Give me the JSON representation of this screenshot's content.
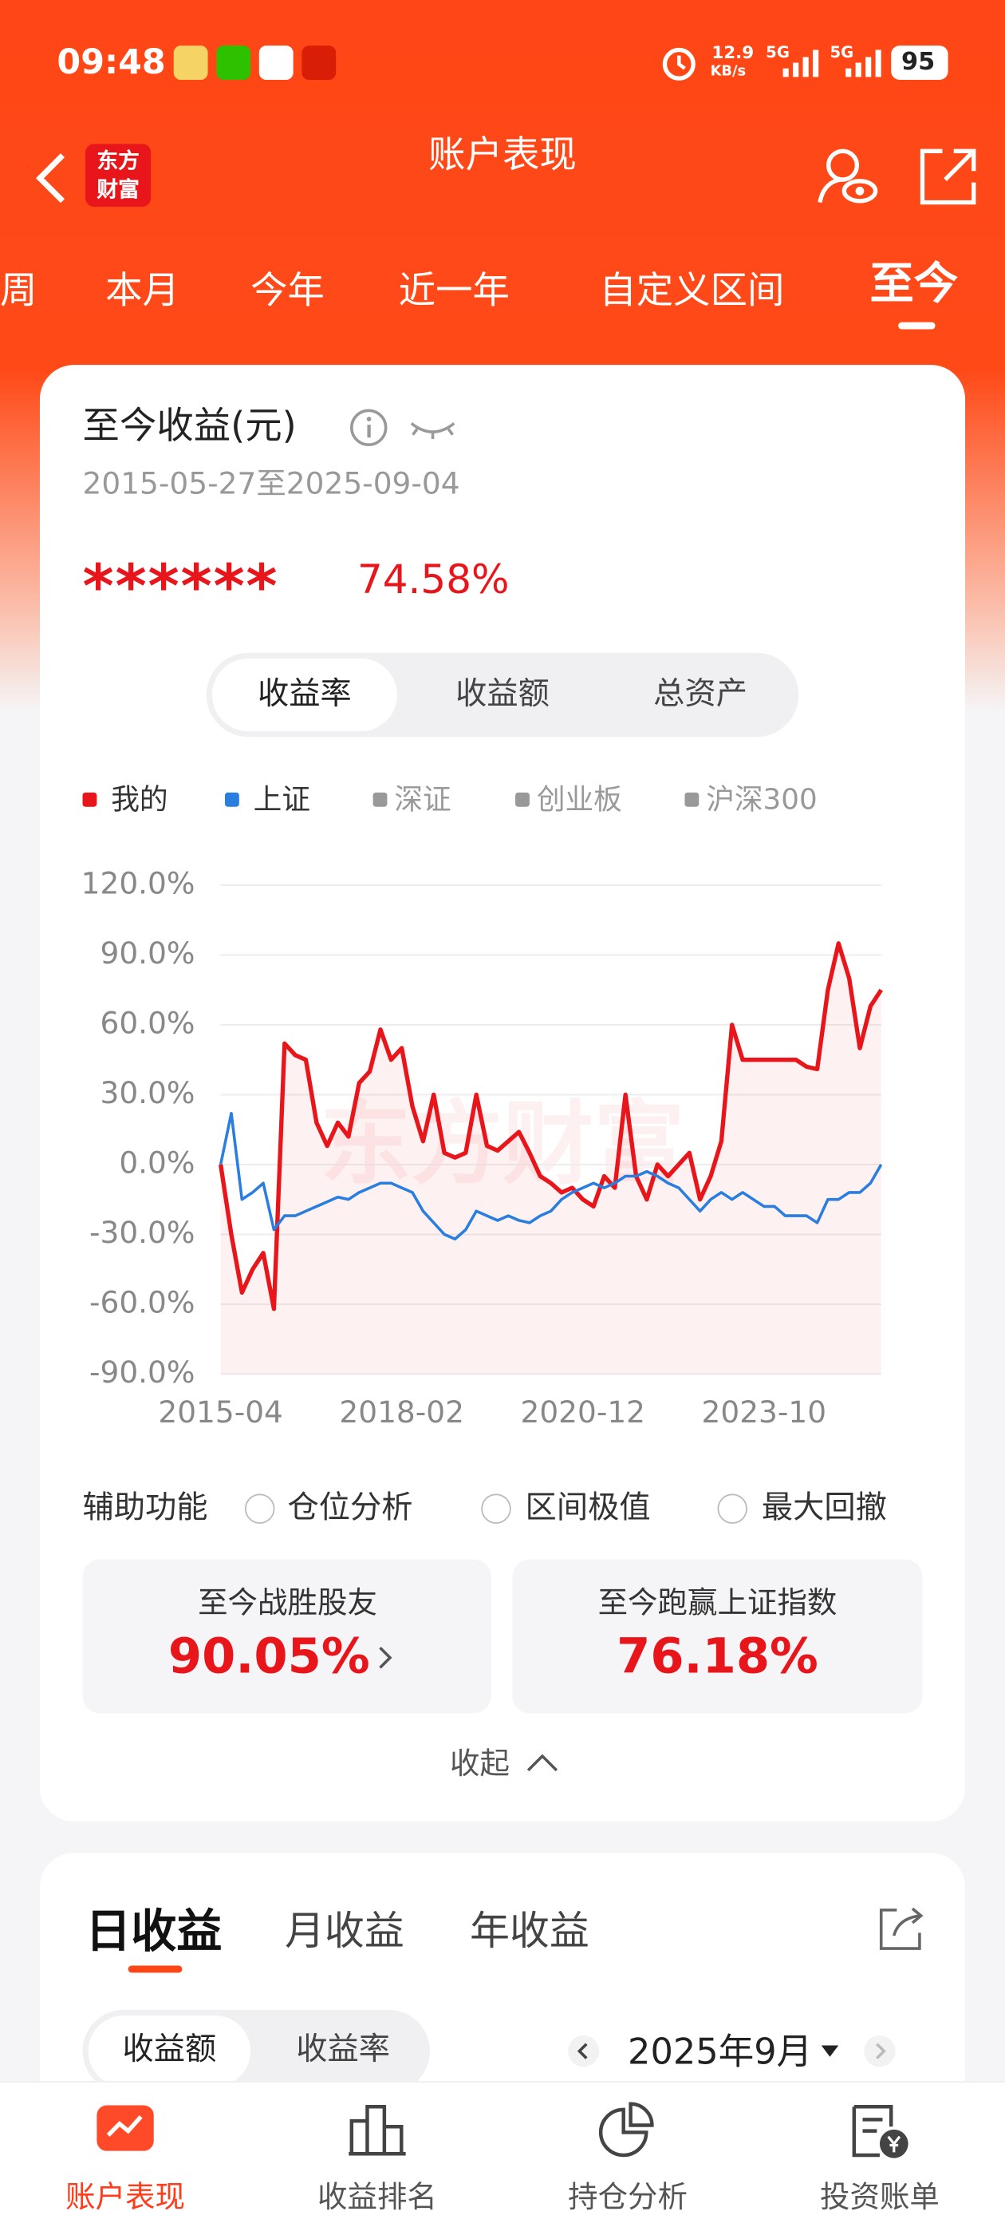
{
  "status_bar": {
    "time": "09:48",
    "speed": "12.9",
    "speed_unit": "KB/s",
    "net1": "5G",
    "net2": "5G",
    "battery": "95"
  },
  "header": {
    "title": "账户表现",
    "logo": [
      "东方",
      "财富"
    ]
  },
  "period_tabs": [
    "周",
    "本月",
    "今年",
    "近一年",
    "自定义区间",
    "至今"
  ],
  "summary": {
    "title": "至今收益(元)",
    "date_range": "2015-05-27至2025-09-04",
    "amount": "******",
    "rate": "74.58%"
  },
  "segments": [
    "收益率",
    "收益额",
    "总资产"
  ],
  "chart_data": {
    "type": "line",
    "watermark": "东方财富",
    "inactive_legend": [
      "深证",
      "创业板",
      "沪深300"
    ],
    "categories": [
      "2015-04",
      null,
      null,
      null,
      null,
      null,
      null,
      null,
      null,
      null,
      null,
      null,
      null,
      null,
      null,
      null,
      null,
      "2018-02",
      null,
      null,
      null,
      null,
      null,
      null,
      null,
      null,
      null,
      null,
      null,
      null,
      null,
      null,
      null,
      null,
      "2020-12",
      null,
      null,
      null,
      null,
      null,
      null,
      null,
      null,
      null,
      null,
      null,
      null,
      null,
      null,
      null,
      null,
      "2023-10",
      null,
      null,
      null,
      null,
      null,
      null,
      null,
      null,
      null,
      null,
      null
    ],
    "series": [
      {
        "name": "我的",
        "color": "#e8151b",
        "area": true,
        "values": [
          0,
          -30,
          -55,
          -45,
          -38,
          -62,
          52,
          47,
          45,
          18,
          8,
          18,
          12,
          35,
          40,
          58,
          45,
          50,
          25,
          10,
          30,
          5,
          3,
          5,
          30,
          8,
          6,
          10,
          14,
          5,
          -5,
          -8,
          -12,
          -10,
          -15,
          -18,
          -5,
          -10,
          30,
          -5,
          -15,
          0,
          -5,
          0,
          5,
          -15,
          -5,
          10,
          60,
          45,
          45,
          45,
          45,
          45,
          45,
          42,
          41,
          75,
          95,
          80,
          50,
          68,
          75
        ]
      },
      {
        "name": "上证",
        "color": "#2a7ee0",
        "area": false,
        "values": [
          0,
          22,
          -15,
          -12,
          -8,
          -28,
          -22,
          -22,
          -20,
          -18,
          -16,
          -14,
          -15,
          -12,
          -10,
          -8,
          -8,
          -10,
          -12,
          -20,
          -25,
          -30,
          -32,
          -28,
          -20,
          -22,
          -24,
          -22,
          -24,
          -25,
          -22,
          -20,
          -15,
          -12,
          -10,
          -8,
          -10,
          -8,
          -5,
          -5,
          -3,
          -5,
          -8,
          -10,
          -15,
          -20,
          -15,
          -12,
          -15,
          -12,
          -15,
          -18,
          -18,
          -22,
          -22,
          -22,
          -25,
          -15,
          -15,
          -12,
          -12,
          -8,
          0
        ]
      }
    ],
    "ylim": [
      -90,
      120
    ],
    "yticks": [
      {
        "value": -90,
        "label": "-90.0%"
      },
      {
        "value": -60,
        "label": "-60.0%"
      },
      {
        "value": -30,
        "label": "-30.0%"
      },
      {
        "value": 0,
        "label": "0.0%"
      },
      {
        "value": 30,
        "label": "30.0%"
      },
      {
        "value": 60,
        "label": "60.0%"
      },
      {
        "value": 90,
        "label": "90.0%"
      },
      {
        "value": 120,
        "label": "120.0%"
      }
    ],
    "grid": true
  },
  "aux": {
    "label": "辅助功能",
    "options": [
      "仓位分析",
      "区间极值",
      "最大回撤"
    ]
  },
  "stats": [
    {
      "label": "至今战胜股友",
      "value": "90.05%"
    },
    {
      "label": "至今跑赢上证指数",
      "value": "76.18%"
    }
  ],
  "collapse": "收起",
  "income_tabs": [
    "日收益",
    "月收益",
    "年收益"
  ],
  "income_toggle": [
    "收益额",
    "收益率"
  ],
  "month": "2025年9月",
  "nav": [
    "账户表现",
    "收益排名",
    "持仓分析",
    "投资账单"
  ]
}
